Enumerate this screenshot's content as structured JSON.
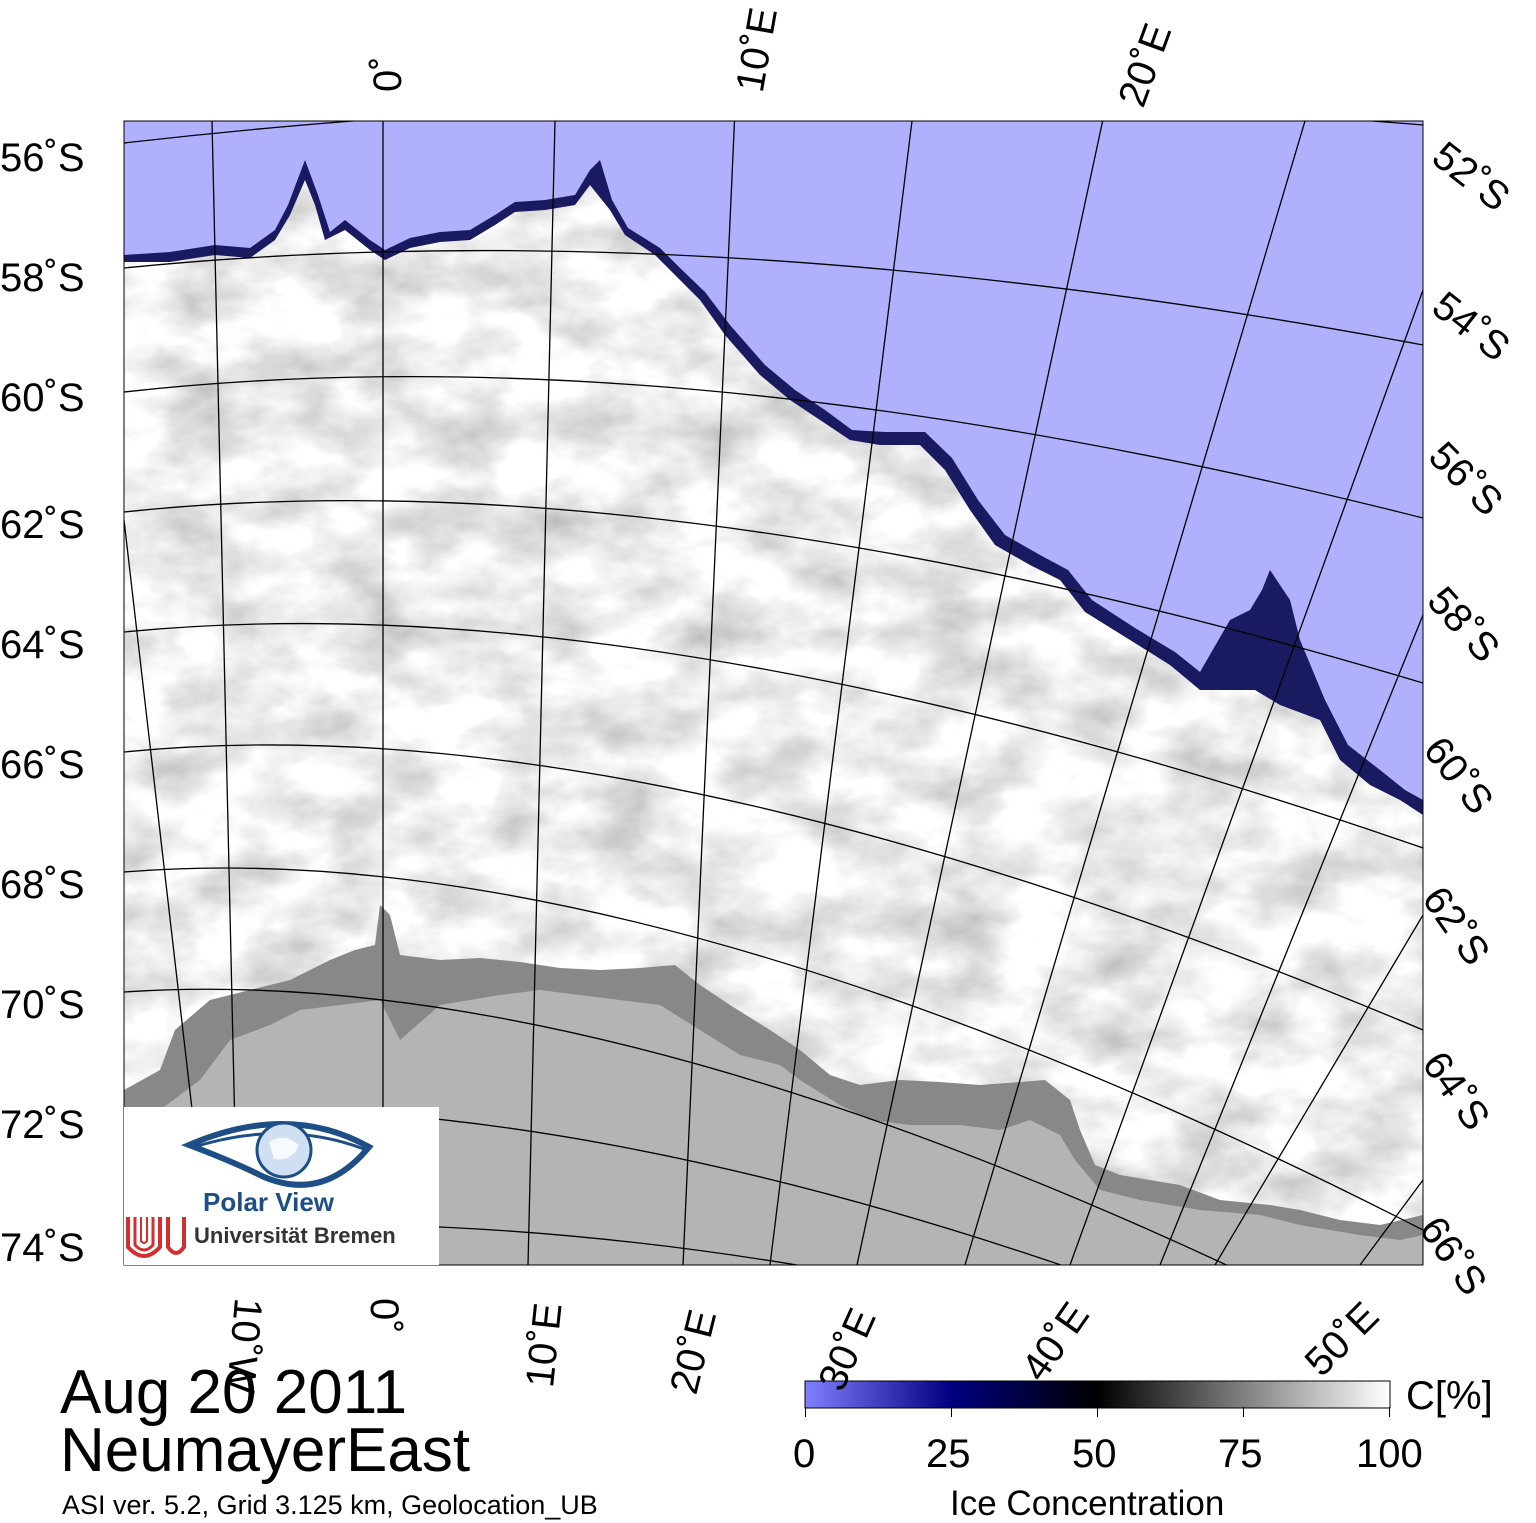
{
  "map": {
    "title_date": "Aug 20 2011",
    "region": "NeumayerEast",
    "metadata": "ASI ver. 5.2,  Grid 3.125 km, Geolocation_UB",
    "colors": {
      "open_water": "#b0b0fc",
      "ice_full": "#ffffff",
      "ice_shelf": "#888888",
      "land": "#b4b4b4",
      "graticule": "#000000"
    },
    "latitude_labels_left": [
      "56˚S",
      "58˚S",
      "60˚S",
      "62˚S",
      "64˚S",
      "66˚S",
      "68˚S",
      "70˚S",
      "72˚S",
      "74˚S"
    ],
    "latitude_labels_right": [
      "52˚S",
      "54˚S",
      "56˚S",
      "58˚S",
      "60˚S",
      "62˚S",
      "64˚S",
      "66˚S"
    ],
    "longitude_labels_top": [
      "0˚",
      "10˚E",
      "20˚E"
    ],
    "longitude_labels_bottom": [
      "10˚W",
      "0˚",
      "10˚E",
      "20˚E",
      "30˚E",
      "40˚E",
      "50˚E"
    ]
  },
  "colorbar": {
    "title": "Ice Concentration",
    "unit": "C[%]",
    "ticks": [
      "0",
      "25",
      "50",
      "75",
      "100"
    ],
    "stops": [
      "#8080ff",
      "#000080",
      "#000000",
      "#808080",
      "#ffffff"
    ]
  },
  "logo": {
    "brand": "Polar View",
    "institution": "Universität Bremen"
  }
}
